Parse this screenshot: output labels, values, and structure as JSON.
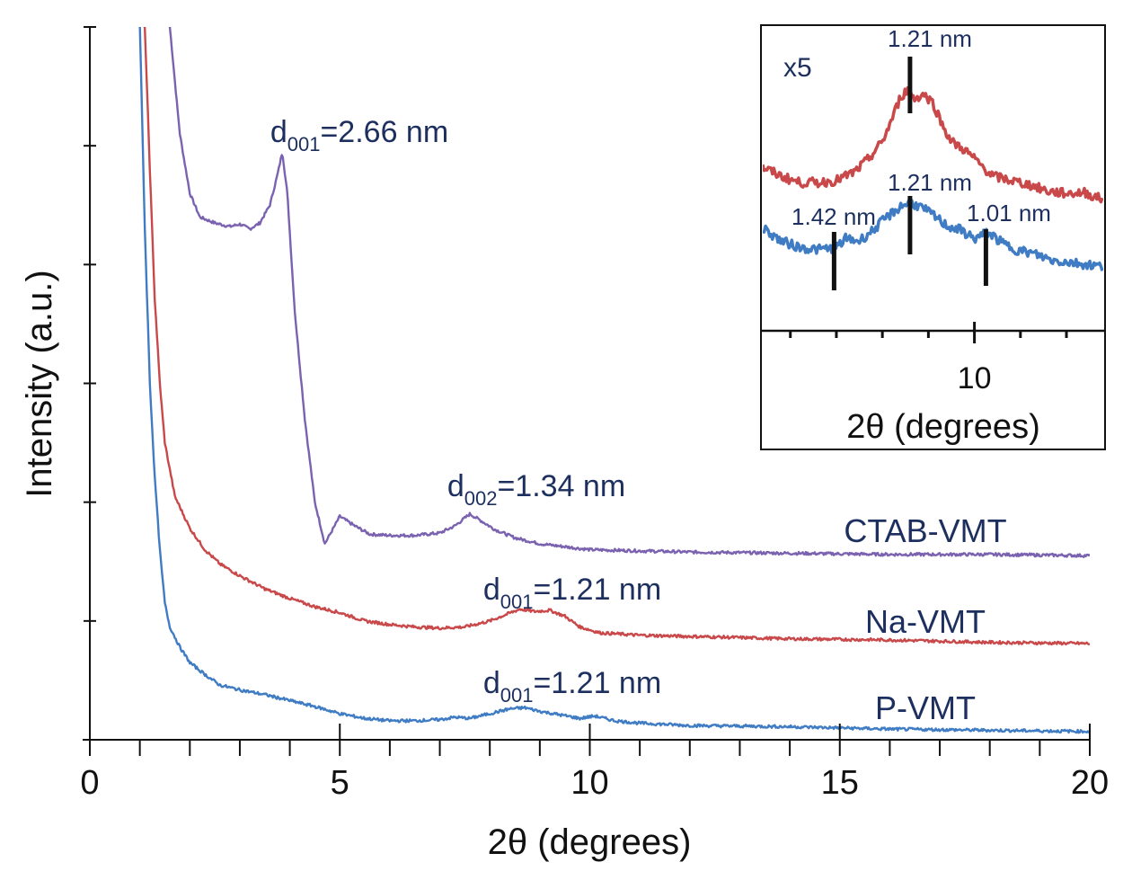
{
  "chart_data": {
    "type": "line",
    "title": "",
    "xlabel": "2θ (degrees)",
    "ylabel": "Intensity (a.u.)",
    "xlim": [
      0,
      20
    ],
    "ylim": [
      0,
      6
    ],
    "x_ticks": [
      "0",
      "5",
      "10",
      "15",
      "20"
    ],
    "x_minor_step": 1,
    "y_ticks_count": 7,
    "y_tick_labels_shown": false,
    "grid": false,
    "legend": "none (series labelled inline at right)",
    "series": [
      {
        "name": "CTAB-VMT",
        "color": "#7b62b0",
        "x": [
          1.6,
          1.8,
          2.0,
          2.2,
          2.5,
          2.8,
          3.0,
          3.2,
          3.4,
          3.6,
          3.75,
          3.85,
          3.95,
          4.1,
          4.3,
          4.5,
          4.7,
          5.0,
          5.3,
          5.6,
          6.0,
          6.5,
          7.0,
          7.3,
          7.6,
          7.8,
          8.1,
          8.5,
          9.0,
          10.0,
          11.0,
          12.0,
          14.0,
          16.0,
          18.0,
          20.0
        ],
        "y": [
          6.0,
          5.1,
          4.6,
          4.4,
          4.35,
          4.32,
          4.34,
          4.3,
          4.35,
          4.5,
          4.75,
          4.95,
          4.6,
          3.6,
          2.7,
          2.0,
          1.65,
          1.88,
          1.8,
          1.73,
          1.72,
          1.72,
          1.74,
          1.8,
          1.9,
          1.85,
          1.77,
          1.7,
          1.65,
          1.6,
          1.59,
          1.58,
          1.57,
          1.56,
          1.56,
          1.55
        ]
      },
      {
        "name": "Na-VMT",
        "color": "#c9484a",
        "x": [
          1.1,
          1.2,
          1.3,
          1.4,
          1.5,
          1.7,
          2.0,
          2.3,
          2.6,
          3.0,
          3.5,
          4.0,
          4.5,
          5.0,
          5.5,
          6.0,
          6.5,
          7.0,
          7.5,
          8.0,
          8.3,
          8.6,
          8.9,
          9.2,
          9.5,
          9.8,
          10.2,
          11.0,
          12.0,
          14.0,
          16.0,
          18.0,
          20.0
        ],
        "y": [
          6.0,
          4.8,
          3.7,
          3.0,
          2.5,
          2.05,
          1.78,
          1.6,
          1.48,
          1.38,
          1.27,
          1.19,
          1.12,
          1.07,
          1.0,
          0.97,
          0.95,
          0.94,
          0.95,
          1.0,
          1.05,
          1.1,
          1.08,
          1.09,
          1.04,
          0.95,
          0.9,
          0.88,
          0.87,
          0.85,
          0.84,
          0.82,
          0.81
        ]
      },
      {
        "name": "P-VMT",
        "color": "#3f7cc4",
        "x": [
          1.0,
          1.1,
          1.2,
          1.3,
          1.4,
          1.5,
          1.6,
          1.8,
          2.0,
          2.3,
          2.6,
          3.0,
          3.5,
          4.0,
          4.5,
          5.0,
          5.5,
          6.0,
          6.5,
          7.0,
          7.3,
          7.6,
          8.0,
          8.4,
          8.7,
          9.0,
          9.4,
          9.8,
          10.1,
          10.5,
          11.0,
          12.0,
          14.0,
          16.0,
          18.0,
          20.0
        ],
        "y": [
          6.0,
          4.3,
          3.0,
          2.2,
          1.6,
          1.15,
          0.95,
          0.78,
          0.65,
          0.55,
          0.46,
          0.42,
          0.38,
          0.33,
          0.28,
          0.22,
          0.18,
          0.16,
          0.16,
          0.17,
          0.19,
          0.18,
          0.22,
          0.26,
          0.27,
          0.24,
          0.21,
          0.18,
          0.2,
          0.16,
          0.14,
          0.12,
          0.11,
          0.09,
          0.08,
          0.07
        ]
      }
    ],
    "annotations": [
      {
        "series": "CTAB-VMT",
        "d": "d",
        "sub": "001",
        "text": "=2.66 nm",
        "x": 3.85
      },
      {
        "series": "CTAB-VMT",
        "d": "d",
        "sub": "002",
        "text": "=1.34 nm",
        "x": 7.6
      },
      {
        "series": "Na-VMT",
        "d": "d",
        "sub": "001",
        "text": "=1.21 nm",
        "x": 8.6
      },
      {
        "series": "P-VMT",
        "d": "d",
        "sub": "001",
        "text": "=1.21 nm",
        "x": 8.6
      }
    ],
    "series_labels": [
      "CTAB-VMT",
      "Na-VMT",
      "P-VMT"
    ],
    "inset": {
      "multiplier_label": "x5",
      "xlabel": "2θ (degrees)",
      "xlim": [
        5.4,
        12.8
      ],
      "x_major_ticks": [
        "10"
      ],
      "x_minor_step": 1,
      "series": [
        {
          "name": "Na-VMT (x5)",
          "color": "#c9484a",
          "x": [
            5.4,
            5.8,
            6.2,
            6.6,
            7.0,
            7.4,
            7.7,
            8.0,
            8.2,
            8.4,
            8.55,
            8.7,
            8.9,
            9.1,
            9.3,
            9.5,
            9.8,
            10.1,
            10.4,
            10.8,
            11.2,
            11.6,
            12.0,
            12.4,
            12.8
          ],
          "y": [
            3.2,
            3.0,
            2.85,
            2.85,
            2.9,
            3.1,
            3.4,
            3.8,
            4.3,
            4.85,
            5.0,
            4.8,
            4.9,
            4.7,
            4.2,
            3.8,
            3.6,
            3.3,
            3.0,
            2.9,
            2.8,
            2.65,
            2.6,
            2.62,
            2.45
          ]
        },
        {
          "name": "P-VMT (x5)",
          "color": "#3f7cc4",
          "x": [
            5.4,
            5.8,
            6.2,
            6.6,
            7.0,
            7.2,
            7.5,
            7.8,
            8.1,
            8.4,
            8.6,
            8.8,
            9.1,
            9.4,
            9.7,
            10.0,
            10.3,
            10.6,
            10.9,
            11.3,
            11.7,
            12.1,
            12.5,
            12.8
          ],
          "y": [
            1.8,
            1.5,
            1.35,
            1.3,
            1.35,
            1.55,
            1.5,
            1.75,
            2.05,
            2.3,
            2.4,
            2.3,
            2.1,
            1.85,
            1.75,
            1.55,
            1.7,
            1.45,
            1.3,
            1.2,
            1.05,
            1.0,
            0.95,
            0.9
          ]
        }
      ],
      "markers": [
        {
          "label": "1.21 nm",
          "x": 8.6,
          "target": "Na-VMT (x5)"
        },
        {
          "label": "1.42 nm",
          "x": 6.95,
          "target": "P-VMT (x5)"
        },
        {
          "label": "1.21 nm",
          "x": 8.6,
          "target": "P-VMT (x5)"
        },
        {
          "label": "1.01 nm",
          "x": 10.25,
          "target": "P-VMT (x5)"
        }
      ]
    }
  }
}
